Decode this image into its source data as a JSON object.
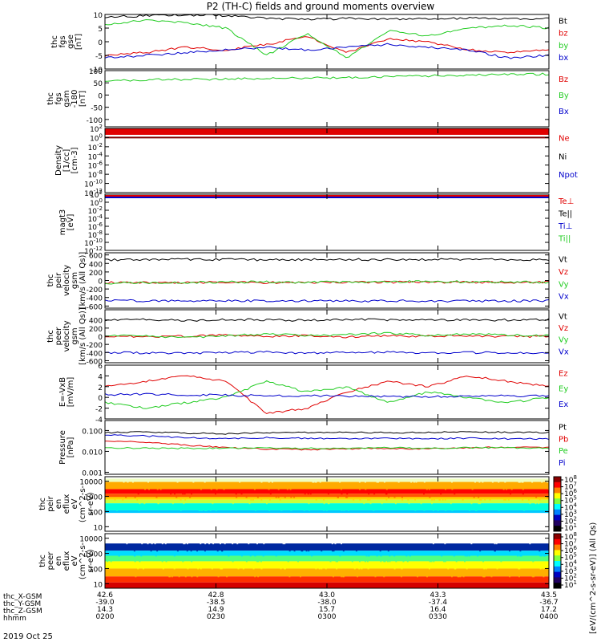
{
  "title": "P2 (TH-C) fields and ground moments overview",
  "date_label": "2019 Oct 25",
  "ephemeris": {
    "row_labels": [
      "thc_X-GSM",
      "thc_Y-GSM",
      "thc_Z-GSM",
      "hhmm"
    ],
    "columns": [
      [
        "42.6",
        "-39.0",
        "14.3",
        "0200"
      ],
      [
        "42.8",
        "-38.5",
        "14.9",
        "0230"
      ],
      [
        "43.0",
        "-38.0",
        "15.7",
        "0300"
      ],
      [
        "43.3",
        "-37.4",
        "16.4",
        "0330"
      ],
      [
        "43.5",
        "-36.7",
        "17.2",
        "0400"
      ]
    ]
  },
  "colorbar_unit": "[eV/(cm^2-s-sr-eV)] (All Qs)",
  "colors": {
    "black": "#000000",
    "red": "#e00000",
    "green": "#22cc22",
    "blue": "#0000cc"
  },
  "chart_data": [
    {
      "type": "line",
      "id": "fgs",
      "ylabel": [
        "thc",
        "fgs",
        "gse",
        "[nT]"
      ],
      "ylim": [
        -10,
        10
      ],
      "yticks": [
        10,
        5,
        0,
        -5,
        -10
      ],
      "series": [
        {
          "name": "Bt",
          "color": "black",
          "values": [
            9,
            9.5,
            9.8,
            9.6,
            8.5,
            8.2,
            8.5,
            8.4,
            8.3,
            8.6,
            8.5,
            8.4
          ]
        },
        {
          "name": "bz",
          "color": "red",
          "values": [
            -5,
            -4,
            -2,
            -3,
            -1,
            2,
            -4,
            1,
            0,
            -3,
            -4,
            -3
          ]
        },
        {
          "name": "by",
          "color": "green",
          "values": [
            6,
            8,
            7,
            5,
            -5,
            3,
            -6,
            4,
            2,
            5,
            6,
            5
          ]
        },
        {
          "name": "bx",
          "color": "blue",
          "values": [
            -6,
            -5,
            -4,
            -3,
            -2,
            -3,
            -2,
            -1,
            -2,
            -3,
            -6,
            -5
          ]
        }
      ]
    },
    {
      "type": "line",
      "id": "fgs-deg",
      "ylabel": [
        "thc",
        "fgs",
        "gsm",
        "-180",
        "[nT]"
      ],
      "ylim": [
        -130,
        100
      ],
      "yticks": [
        100,
        50,
        0,
        -50,
        -100
      ],
      "series": [
        {
          "name": "Bz",
          "color": "red",
          "values": []
        },
        {
          "name": "By",
          "color": "green",
          "values": [
            60,
            62,
            64,
            66,
            68,
            70,
            72,
            75,
            78,
            82,
            85,
            86
          ]
        },
        {
          "name": "Bx",
          "color": "blue",
          "values": []
        }
      ]
    },
    {
      "type": "line",
      "id": "density",
      "ylabel": [
        "Density",
        "[1/cc]",
        "[cm-3]"
      ],
      "scale": "log",
      "ylim": [
        1e-12,
        100
      ],
      "yticks": [
        "10^2",
        "10^0",
        "10^-2",
        "10^-4",
        "10^-6",
        "10^-8",
        "10^-10",
        "10^-12"
      ],
      "series": [
        {
          "name": "Ne",
          "color": "red",
          "values": []
        },
        {
          "name": "Ni",
          "color": "black",
          "values": []
        },
        {
          "name": "Npot",
          "color": "blue",
          "values": []
        }
      ]
    },
    {
      "type": "line",
      "id": "temp",
      "ylabel": [
        "magt3",
        "[eV]"
      ],
      "scale": "log",
      "ylim": [
        1e-12,
        100
      ],
      "yticks": [
        "10^2",
        "10^0",
        "10^-2",
        "10^-4",
        "10^-6",
        "10^-8",
        "10^-10",
        "10^-12"
      ],
      "series": [
        {
          "name": "Te⊥",
          "color": "red",
          "values": []
        },
        {
          "name": "Te||",
          "color": "black",
          "values": []
        },
        {
          "name": "Ti⊥",
          "color": "blue",
          "values": []
        },
        {
          "name": "Ti||",
          "color": "green",
          "values": []
        }
      ]
    },
    {
      "type": "line",
      "id": "peir-vel",
      "ylabel": [
        "thc",
        "peir",
        "velocity",
        "gsm",
        "[km/s (All Qs)]"
      ],
      "ylim": [
        -650,
        650
      ],
      "yticks": [
        600,
        400,
        200,
        0,
        -200,
        -400,
        -600
      ],
      "yticklabels": [
        "600",
        "400",
        "200",
        "0",
        "-200",
        "-400",
        "-600"
      ],
      "series": [
        {
          "name": "Vt",
          "color": "black",
          "values": [
            480,
            490,
            495,
            490,
            485,
            490,
            492,
            488,
            490,
            495,
            490,
            488
          ]
        },
        {
          "name": "Vz",
          "color": "red",
          "values": [
            -50,
            -45,
            -55,
            -40,
            -50,
            -45,
            -35,
            -40,
            -45,
            -38,
            -42,
            -40
          ]
        },
        {
          "name": "Vy",
          "color": "green",
          "values": [
            -60,
            -55,
            -50,
            -40,
            -30,
            -40,
            -35,
            -25,
            -30,
            -30,
            -35,
            -40
          ]
        },
        {
          "name": "Vx",
          "color": "blue",
          "values": [
            -470,
            -480,
            -485,
            -478,
            -475,
            -480,
            -482,
            -480,
            -478,
            -485,
            -480,
            -478
          ]
        }
      ]
    },
    {
      "type": "line",
      "id": "peer-vel",
      "ylabel": [
        "thc",
        "peer",
        "velocity",
        "gsm",
        "[km/s (All Qs)]"
      ],
      "ylim": [
        -650,
        650
      ],
      "yticks": [
        400,
        200,
        0,
        -200,
        -400,
        -600
      ],
      "yticklabels": [
        "400",
        "200",
        "0",
        "-200",
        "-400",
        "-600"
      ],
      "series": [
        {
          "name": "Vt",
          "color": "black",
          "values": [
            400,
            420,
            380,
            410,
            400,
            390,
            420,
            400,
            410,
            395,
            400,
            410
          ]
        },
        {
          "name": "Vz",
          "color": "red",
          "values": [
            10,
            -20,
            0,
            30,
            -10,
            20,
            -20,
            10,
            0,
            20,
            -10,
            0
          ]
        },
        {
          "name": "Vy",
          "color": "green",
          "values": [
            20,
            0,
            -30,
            10,
            60,
            20,
            40,
            80,
            20,
            60,
            30,
            20
          ]
        },
        {
          "name": "Vx",
          "color": "blue",
          "values": [
            -400,
            -410,
            -420,
            -400,
            -390,
            -410,
            -400,
            -395,
            -405,
            -400,
            -410,
            -400
          ]
        }
      ]
    },
    {
      "type": "line",
      "id": "efield",
      "ylabel": [
        "E=-VxB",
        "[mV/m]"
      ],
      "ylim": [
        -4,
        6
      ],
      "yticks": [
        6,
        4,
        2,
        0,
        -2,
        -4
      ],
      "series": [
        {
          "name": "Ez",
          "color": "red",
          "values": [
            2,
            3,
            4,
            3,
            -3,
            -2,
            1,
            3,
            2,
            4,
            3,
            2
          ]
        },
        {
          "name": "Ey",
          "color": "green",
          "values": [
            -1,
            -2,
            -1,
            0,
            3,
            1,
            2,
            -1,
            1,
            0,
            -1,
            0
          ]
        },
        {
          "name": "Ex",
          "color": "blue",
          "values": [
            0.5,
            0.6,
            0.5,
            0.4,
            0.3,
            0.3,
            0.2,
            0.2,
            0.1,
            0.2,
            0.3,
            0.3
          ]
        }
      ]
    },
    {
      "type": "line",
      "id": "pressure",
      "ylabel": [
        "Pressure",
        "[nPa]"
      ],
      "scale": "log",
      "ylim": [
        0.0008,
        0.3
      ],
      "yticks": [
        0.1,
        0.01,
        0.001
      ],
      "yticklabels": [
        "0.100",
        "0.010",
        "0.001"
      ],
      "series": [
        {
          "name": "Pt",
          "color": "black",
          "values": [
            0.08,
            0.085,
            0.075,
            0.07,
            0.078,
            0.08,
            0.082,
            0.078,
            0.08,
            0.085,
            0.082,
            0.08
          ]
        },
        {
          "name": "Pb",
          "color": "red",
          "values": [
            0.03,
            0.028,
            0.02,
            0.015,
            0.013,
            0.012,
            0.013,
            0.014,
            0.013,
            0.015,
            0.016,
            0.015
          ]
        },
        {
          "name": "Pe",
          "color": "green",
          "values": [
            0.015,
            0.014,
            0.014,
            0.014,
            0.015,
            0.014,
            0.014,
            0.015,
            0.014,
            0.015,
            0.015,
            0.014
          ]
        },
        {
          "name": "Pi",
          "color": "blue",
          "values": [
            0.06,
            0.055,
            0.045,
            0.04,
            0.045,
            0.042,
            0.04,
            0.042,
            0.04,
            0.043,
            0.04,
            0.04
          ]
        }
      ]
    },
    {
      "type": "heatmap",
      "id": "peir-spec",
      "ylabel": [
        "thc",
        "peir",
        "en",
        "eflux",
        "eV",
        "(cm^2-s-",
        "sr-eV)"
      ],
      "scale": "log",
      "ylim": [
        5,
        20000
      ],
      "yticks": [
        10000,
        1000,
        100,
        10
      ],
      "yticklabels": [
        "10000",
        "1000",
        "100",
        "10"
      ],
      "bands": [
        [
          15000,
          "#f0ffc0"
        ],
        [
          9000,
          "#ffaa00"
        ],
        [
          3000,
          "#ff0000"
        ],
        [
          1500,
          "#ff5500"
        ],
        [
          900,
          "#ffd700"
        ],
        [
          600,
          "#c8ff3c"
        ],
        [
          350,
          "#00ffdc"
        ],
        [
          120,
          "#00c8ff"
        ],
        [
          80,
          "#ffffff"
        ]
      ],
      "colorbar_ticks": [
        "10^8",
        "10^7",
        "10^6",
        "10^5",
        "10^4",
        "10^3",
        "10^2",
        "10^1"
      ]
    },
    {
      "type": "heatmap",
      "id": "peer-spec",
      "ylabel": [
        "thc",
        "peer",
        "en",
        "eflux",
        "eV",
        "(cm^2-s-",
        "sr-eV)"
      ],
      "scale": "log",
      "ylim": [
        5,
        20000
      ],
      "yticks": [
        10000,
        1000,
        100,
        10
      ],
      "yticklabels": [
        "10000",
        "1000",
        "100",
        "10"
      ],
      "bands": [
        [
          10000,
          "#ffffff"
        ],
        [
          4500,
          "#0028a0"
        ],
        [
          1500,
          "#00dcff"
        ],
        [
          700,
          "#50ff80"
        ],
        [
          300,
          "#ffff00"
        ],
        [
          100,
          "#ffb000"
        ],
        [
          30,
          "#ff3000"
        ],
        [
          12,
          "#d40000"
        ]
      ],
      "colorbar_ticks": [
        "10^8",
        "10^7",
        "10^6",
        "10^5",
        "10^4",
        "10^3",
        "10^2",
        "10^1"
      ]
    }
  ]
}
